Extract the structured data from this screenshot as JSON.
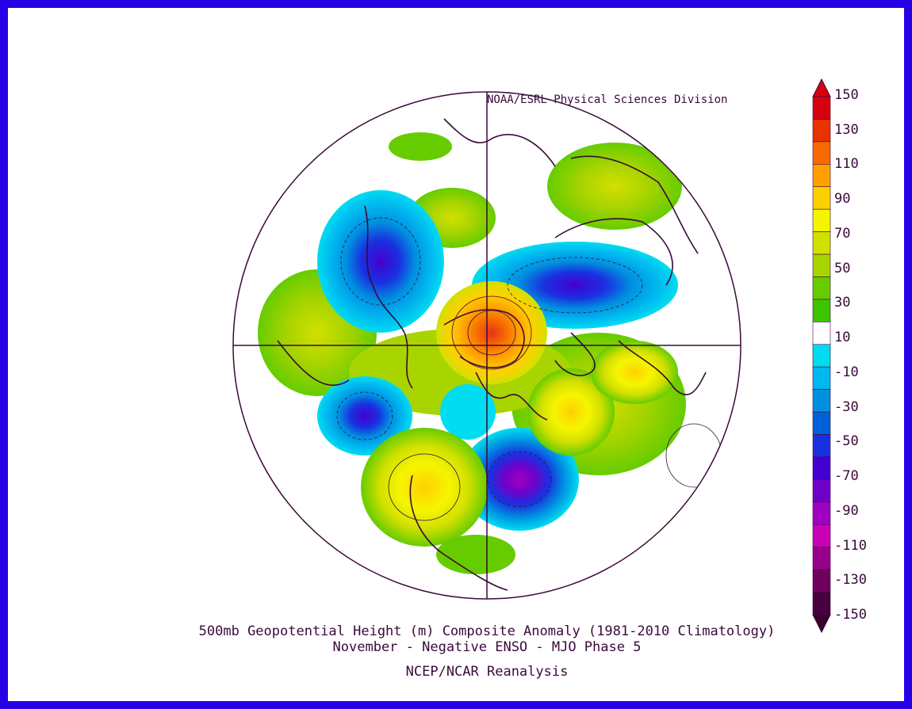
{
  "credit": "NOAA/ESRL Physical Sciences Division",
  "title_line1": "500mb Geopotential Height (m) Composite Anomaly (1981-2010 Climatology)",
  "title_line2": "November - Negative ENSO - MJO Phase 5",
  "source": "NCEP/NCAR Reanalysis",
  "colorbar": {
    "labels": [
      "150",
      "130",
      "110",
      "90",
      "70",
      "50",
      "30",
      "10",
      "-10",
      "-30",
      "-50",
      "-70",
      "-90",
      "-110",
      "-130",
      "-150"
    ],
    "colors": [
      "#d7000f",
      "#e83200",
      "#f76a00",
      "#ffa000",
      "#ffd000",
      "#f5f500",
      "#d2e000",
      "#a8d400",
      "#66cc00",
      "#3cc400",
      "#ffffff",
      "#00dcf0",
      "#00b8f0",
      "#0090e0",
      "#0060d8",
      "#1a30e0",
      "#4400d0",
      "#7000c8",
      "#a000c0",
      "#c800b8",
      "#98008c",
      "#700060",
      "#4a0040"
    ],
    "tip_top_color": "#d7000f",
    "tip_bottom_color": "#3a0030"
  },
  "map": {
    "projection": "north polar stereographic",
    "anomalies": [
      {
        "label": "high",
        "value": 150,
        "color": "#e8321a"
      },
      {
        "label": "high",
        "value": 90,
        "color": "#ffd000"
      },
      {
        "label": "low",
        "value": -110,
        "color": "#a000c0"
      },
      {
        "label": "low",
        "value": -90,
        "color": "#4400d0"
      }
    ]
  }
}
